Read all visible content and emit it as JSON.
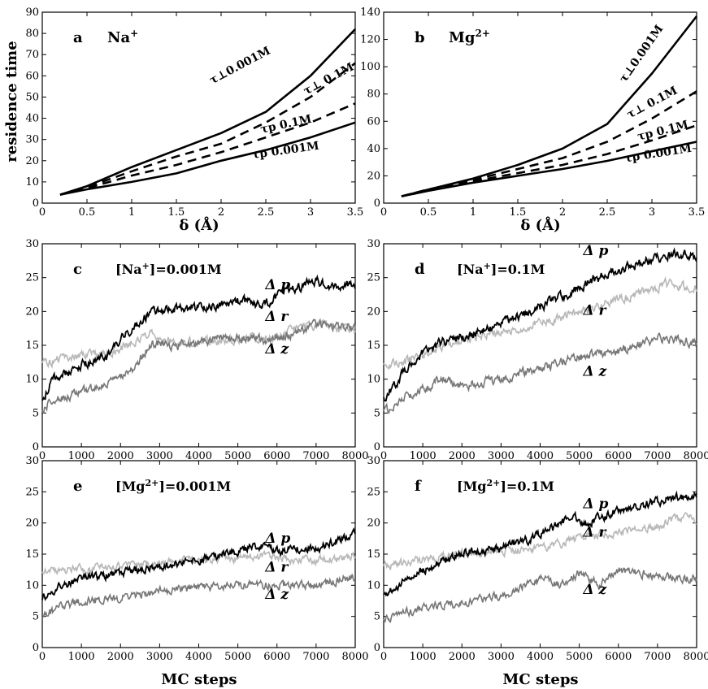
{
  "figure": {
    "ylabel_top": "residence  time",
    "xlabel_top": "δ  (Å)",
    "xlabel_bottom": "MC steps"
  },
  "chart_data": [
    {
      "id": "a",
      "type": "line",
      "panel_label": "a",
      "ion_label": "Na",
      "ion_sup": "+",
      "xlim": [
        0,
        3.5
      ],
      "ylim": [
        0,
        90
      ],
      "xticks": [
        "0",
        "0.5",
        "1",
        "1.5",
        "2",
        "2.5",
        "3",
        "3.5"
      ],
      "yticks": [
        "0",
        "10",
        "20",
        "30",
        "40",
        "50",
        "60",
        "70",
        "80",
        "90"
      ],
      "series": [
        {
          "name": "τ⊥ 0.001M",
          "dash": "solid",
          "x": [
            0.2,
            0.5,
            1,
            1.5,
            2,
            2.5,
            3,
            3.5
          ],
          "y": [
            4,
            8,
            17,
            25,
            33,
            43,
            60,
            82
          ]
        },
        {
          "name": "τ⊥ 0.1M",
          "dash": "dashed",
          "x": [
            0.2,
            0.5,
            1,
            1.5,
            2,
            2.5,
            3,
            3.5
          ],
          "y": [
            4,
            7.5,
            15,
            22,
            28,
            38,
            50,
            66
          ]
        },
        {
          "name": "τp 0.1M",
          "dash": "dashed",
          "x": [
            0.2,
            0.5,
            1,
            1.5,
            2,
            2.5,
            3,
            3.5
          ],
          "y": [
            4,
            7,
            13,
            18,
            24,
            31,
            38,
            47
          ]
        },
        {
          "name": "τp 0.001M",
          "dash": "solid",
          "x": [
            0.2,
            0.5,
            1,
            1.5,
            2,
            2.5,
            3,
            3.5
          ],
          "y": [
            4,
            6.5,
            10,
            14,
            20,
            25,
            31,
            38
          ]
        }
      ],
      "annotations": [
        {
          "text": "τ⊥0.001M",
          "x": 1.9,
          "y": 56,
          "rotate": -28
        },
        {
          "text": "τ⊥ 0.1M",
          "x": 2.95,
          "y": 51,
          "rotate": -28
        },
        {
          "text": "τp 0.1M",
          "x": 2.45,
          "y": 33,
          "rotate": -12
        },
        {
          "text": "τp  0.001M",
          "x": 2.35,
          "y": 21,
          "rotate": -8
        }
      ]
    },
    {
      "id": "b",
      "type": "line",
      "panel_label": "b",
      "ion_label": "Mg",
      "ion_sup": "2+",
      "xlim": [
        0,
        3.5
      ],
      "ylim": [
        0,
        140
      ],
      "xticks": [
        "0",
        "0.5",
        "1",
        "1.5",
        "2",
        "2.5",
        "3",
        "3.5"
      ],
      "yticks": [
        "0",
        "20",
        "40",
        "60",
        "80",
        "100",
        "120",
        "140"
      ],
      "series": [
        {
          "name": "τ⊥ 0.001M",
          "dash": "solid",
          "x": [
            0.2,
            0.5,
            1,
            1.5,
            2,
            2.5,
            3,
            3.5
          ],
          "y": [
            5,
            10,
            18,
            28,
            40,
            58,
            95,
            137
          ]
        },
        {
          "name": "τ⊥ 0.1M",
          "dash": "dashed",
          "x": [
            0.2,
            0.5,
            1,
            1.5,
            2,
            2.5,
            3,
            3.5
          ],
          "y": [
            5,
            10,
            17,
            25,
            33,
            45,
            62,
            82
          ]
        },
        {
          "name": "τp 0.1M",
          "dash": "dashed",
          "x": [
            0.2,
            0.5,
            1,
            1.5,
            2,
            2.5,
            3,
            3.5
          ],
          "y": [
            5,
            10,
            16,
            22,
            28,
            36,
            46,
            57
          ]
        },
        {
          "name": "τp 0.001M",
          "dash": "solid",
          "x": [
            0.2,
            0.5,
            1,
            1.5,
            2,
            2.5,
            3,
            3.5
          ],
          "y": [
            5,
            9,
            15,
            20,
            25,
            31,
            38,
            45
          ]
        }
      ],
      "annotations": [
        {
          "text": "τ⊥0.001M",
          "x": 2.7,
          "y": 88,
          "rotate": -55
        },
        {
          "text": "τ⊥ 0.1M",
          "x": 2.75,
          "y": 62,
          "rotate": -28
        },
        {
          "text": "τp  0.1M",
          "x": 2.85,
          "y": 46,
          "rotate": -14
        },
        {
          "text": "τp  0.001M",
          "x": 2.7,
          "y": 30,
          "rotate": -9
        }
      ]
    },
    {
      "id": "c",
      "type": "line",
      "panel_label": "c",
      "condition_prefix": "[Na",
      "condition_sup": "+",
      "condition_suffix": "]=0.001M",
      "xlim": [
        0,
        8000
      ],
      "ylim": [
        0,
        30
      ],
      "xticks": [
        "0",
        "1000",
        "2000",
        "3000",
        "4000",
        "5000",
        "6000",
        "7000",
        "8000"
      ],
      "yticks": [
        "0",
        "5",
        "10",
        "15",
        "20",
        "25",
        "30"
      ],
      "series": [
        {
          "name": "Δ p",
          "color": "#000000",
          "x": [
            0,
            300,
            1000,
            1700,
            2200,
            2700,
            3200,
            4000,
            5000,
            5700,
            6200,
            7000,
            7500,
            8000
          ],
          "y": [
            7,
            10,
            12,
            13.5,
            17,
            19.5,
            20.5,
            20.5,
            21.5,
            21,
            23,
            24.5,
            23.5,
            24
          ]
        },
        {
          "name": "Δ r",
          "color": "#b8b8b8",
          "x": [
            0,
            500,
            1000,
            1800,
            2400,
            2700,
            3200,
            4000,
            5000,
            5800,
            6500,
            7000,
            8000
          ],
          "y": [
            12.5,
            13,
            13.5,
            14,
            15.5,
            17,
            16,
            15.5,
            16,
            16,
            17.5,
            18,
            17.5
          ]
        },
        {
          "name": "Δ z",
          "color": "#777777",
          "x": [
            0,
            300,
            1000,
            1800,
            2400,
            2800,
            3500,
            4500,
            5500,
            5800,
            6500,
            7000,
            8000
          ],
          "y": [
            5.5,
            7,
            8,
            9.5,
            12,
            15.5,
            15,
            16,
            16,
            15.5,
            17,
            18,
            17.5
          ]
        }
      ],
      "labels": [
        {
          "text": "Δ p",
          "x": 5700,
          "y": 23.3
        },
        {
          "text": "Δ r",
          "x": 5700,
          "y": 18.6
        },
        {
          "text": "Δ z",
          "x": 5700,
          "y": 13.8
        }
      ]
    },
    {
      "id": "d",
      "type": "line",
      "panel_label": "d",
      "condition_prefix": "[Na",
      "condition_sup": "+",
      "condition_suffix": "]=0.1M",
      "xlim": [
        0,
        8000
      ],
      "ylim": [
        0,
        30
      ],
      "xticks": [
        "0",
        "1000",
        "2000",
        "3000",
        "4000",
        "5000",
        "6000",
        "7000",
        "8000"
      ],
      "yticks": [
        "0",
        "5",
        "10",
        "15",
        "20",
        "25",
        "30"
      ],
      "series": [
        {
          "name": "Δ p",
          "color": "#000000",
          "x": [
            0,
            500,
            1000,
            1500,
            2500,
            3500,
            4500,
            5500,
            6500,
            7000,
            7500,
            8000
          ],
          "y": [
            7,
            11,
            14,
            15.5,
            17,
            19.5,
            22,
            25,
            27,
            28,
            28.5,
            28
          ]
        },
        {
          "name": "Δ r",
          "color": "#b8b8b8",
          "x": [
            0,
            500,
            1000,
            1500,
            2500,
            3500,
            4500,
            5500,
            6500,
            7200,
            8000
          ],
          "y": [
            12,
            12.5,
            13.5,
            15,
            16.5,
            17.5,
            19,
            21,
            22.5,
            24,
            23.5
          ]
        },
        {
          "name": "Δ z",
          "color": "#777777",
          "x": [
            0,
            500,
            1000,
            1500,
            2000,
            3000,
            4000,
            5000,
            6000,
            7000,
            8000
          ],
          "y": [
            5,
            7.5,
            8.5,
            10,
            9,
            10,
            11.5,
            13.5,
            14,
            16,
            15.5
          ]
        }
      ],
      "labels": [
        {
          "text": "Δ p",
          "x": 5100,
          "y": 28.3
        },
        {
          "text": "Δ r",
          "x": 5100,
          "y": 19.5
        },
        {
          "text": "Δ z",
          "x": 5100,
          "y": 10.5
        }
      ]
    },
    {
      "id": "e",
      "type": "line",
      "panel_label": "e",
      "condition_prefix": "[Mg",
      "condition_sup": "2+",
      "condition_suffix": "]=0.001M",
      "xlim": [
        0,
        8000
      ],
      "ylim": [
        0,
        30
      ],
      "xticks": [
        "0",
        "1000",
        "2000",
        "3000",
        "4000",
        "5000",
        "6000",
        "7000",
        "8000"
      ],
      "yticks": [
        "0",
        "5",
        "10",
        "15",
        "20",
        "25",
        "30"
      ],
      "series": [
        {
          "name": "Δ p",
          "color": "#000000",
          "x": [
            0,
            500,
            1000,
            2000,
            3000,
            4000,
            5000,
            5700,
            6000,
            7000,
            7500,
            8000
          ],
          "y": [
            8,
            10,
            11,
            12,
            13,
            14,
            15.5,
            16.5,
            15.5,
            16,
            17,
            18.5
          ]
        },
        {
          "name": "Δ r",
          "color": "#b8b8b8",
          "x": [
            0,
            500,
            1000,
            2000,
            3000,
            4000,
            5000,
            6000,
            7000,
            8000
          ],
          "y": [
            12.5,
            12.5,
            12.5,
            13,
            13.5,
            14,
            14.5,
            14.5,
            14,
            14.5
          ]
        },
        {
          "name": "Δ z",
          "color": "#777777",
          "x": [
            0,
            500,
            1000,
            2000,
            3000,
            4000,
            5000,
            6000,
            7000,
            8000
          ],
          "y": [
            5,
            6.5,
            7.5,
            8,
            9,
            9.5,
            10,
            10,
            10,
            11.5
          ]
        }
      ],
      "labels": [
        {
          "text": "Δ p",
          "x": 5700,
          "y": 16.8
        },
        {
          "text": "Δ r",
          "x": 5700,
          "y": 12.2
        },
        {
          "text": "Δ z",
          "x": 5700,
          "y": 7.8
        }
      ]
    },
    {
      "id": "f",
      "type": "line",
      "panel_label": "f",
      "condition_prefix": "[Mg",
      "condition_sup": "2+",
      "condition_suffix": "]=0.1M",
      "xlim": [
        0,
        8000
      ],
      "ylim": [
        0,
        30
      ],
      "xticks": [
        "0",
        "1000",
        "2000",
        "3000",
        "4000",
        "5000",
        "6000",
        "7000",
        "8000"
      ],
      "yticks": [
        "0",
        "5",
        "10",
        "15",
        "20",
        "25",
        "30"
      ],
      "series": [
        {
          "name": "Δ p",
          "color": "#000000",
          "x": [
            0,
            500,
            1000,
            2000,
            3000,
            3500,
            4000,
            4800,
            5200,
            6000,
            7000,
            8000
          ],
          "y": [
            8.5,
            10.5,
            12.5,
            15,
            16,
            17,
            18,
            21,
            20,
            22,
            23.5,
            24.5
          ]
        },
        {
          "name": "Δ r",
          "color": "#b8b8b8",
          "x": [
            0,
            500,
            1000,
            2000,
            3000,
            4000,
            5000,
            6000,
            7000,
            7800,
            8000
          ],
          "y": [
            13,
            13.5,
            14,
            15,
            15.5,
            16,
            17.5,
            18.5,
            19.5,
            21.5,
            20.5
          ]
        },
        {
          "name": "Δ z",
          "color": "#777777",
          "x": [
            0,
            500,
            1000,
            2000,
            3000,
            3500,
            4000,
            4500,
            5000,
            5500,
            6000,
            6500,
            7000,
            8000
          ],
          "y": [
            4.5,
            5.5,
            6.5,
            7,
            8.5,
            9.5,
            11,
            10,
            12,
            10,
            12.5,
            12,
            11.5,
            11
          ]
        }
      ],
      "labels": [
        {
          "text": "Δ p",
          "x": 5100,
          "y": 22.4
        },
        {
          "text": "Δ r",
          "x": 5100,
          "y": 17.8
        },
        {
          "text": "Δ z",
          "x": 5100,
          "y": 8.6
        }
      ]
    }
  ]
}
